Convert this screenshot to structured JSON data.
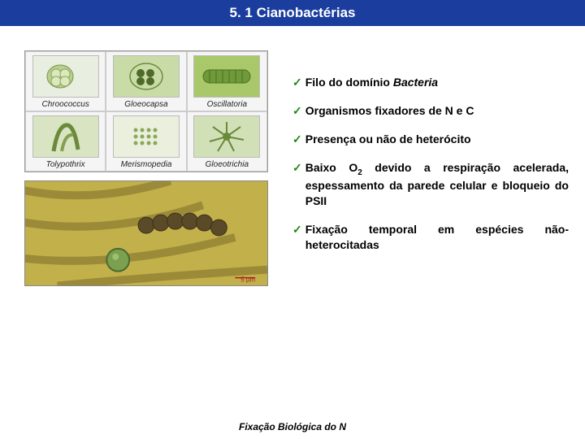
{
  "title": "5. 1 Cianobactérias",
  "footer": "Fixação Biológica do N",
  "grid": {
    "background": "#f5f5f5",
    "border": "#cccccc",
    "cells": [
      {
        "label": "Chroococcus",
        "bg": "#e8efe0",
        "shape": "coccus"
      },
      {
        "label": "Gloeocapsa",
        "bg": "#c9dca8",
        "shape": "capsule"
      },
      {
        "label": "Oscillatoria",
        "bg": "#a8c86a",
        "shape": "filament-h"
      },
      {
        "label": "Tolypothrix",
        "bg": "#d8e4c2",
        "shape": "filament-v"
      },
      {
        "label": "Merismopedia",
        "bg": "#eaf0dd",
        "shape": "grid-dots"
      },
      {
        "label": "Gloeotrichia",
        "bg": "#d2e0b8",
        "shape": "radiate"
      }
    ]
  },
  "microphoto": {
    "bg": "#c2b04a",
    "accent": "#6b6030",
    "sphere": "#7aa050"
  },
  "bullets": [
    {
      "html": "<b>Filo do domínio <i>Bacteria</i></b>"
    },
    {
      "html": "<b>Organismos fixadores de N e C</b>"
    },
    {
      "html": "<b>Presença ou não de heterócito</b>"
    },
    {
      "html": "<b>Baixo O<span class=\"sub\">2</span> devido a respiração acelerada, espessamento da parede celular e bloqueio do PSII</b>"
    },
    {
      "html": "<b>Fixação temporal em espécies não-heterocitadas</b>"
    }
  ],
  "check_glyph": "✓",
  "colors": {
    "title_bg": "#1a3d9e",
    "title_fg": "#ffffff",
    "check": "#1a8a1a"
  }
}
